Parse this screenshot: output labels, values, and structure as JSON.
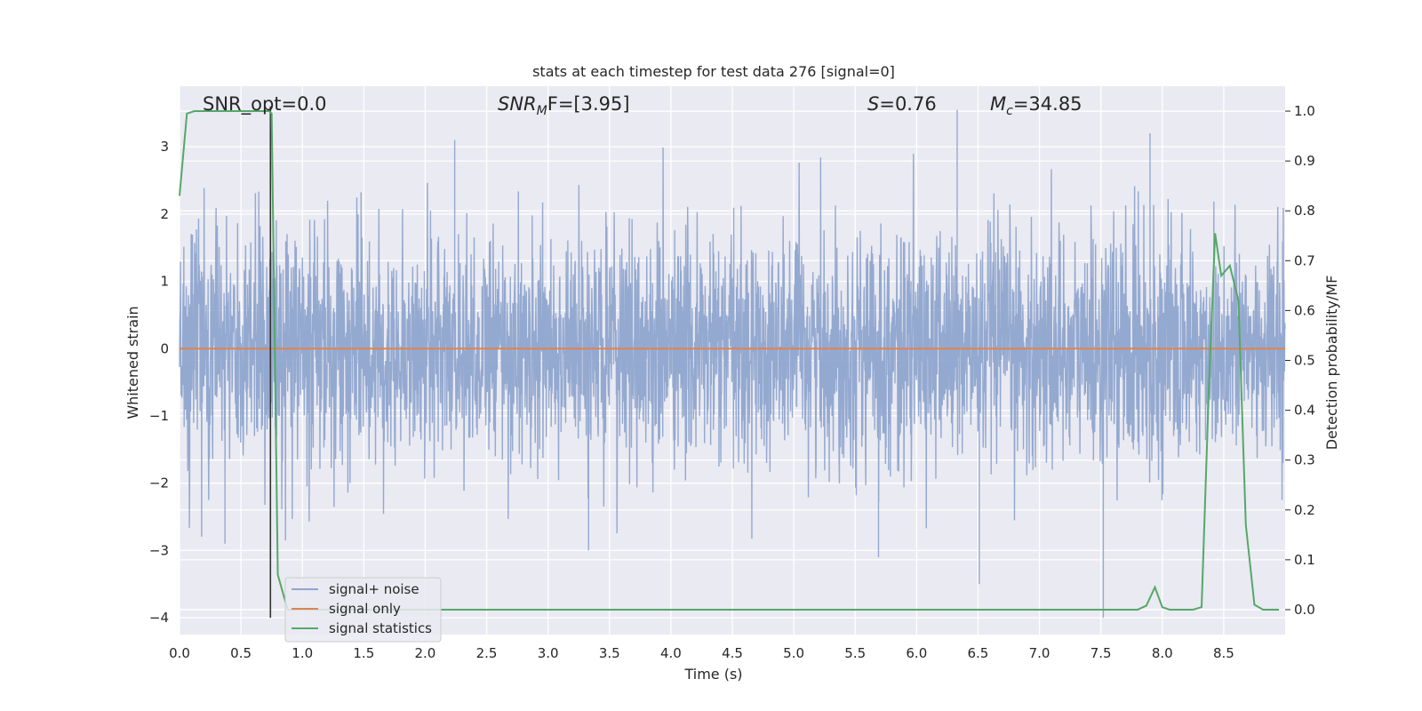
{
  "chart_data": {
    "type": "line",
    "title": "stats at each timestep for test data 276 [signal=0]",
    "xlabel": "Time (s)",
    "ylabel_left": "Whitened strain",
    "ylabel_right": "Detection probability/MF",
    "xlim": [
      0.0,
      9.0
    ],
    "ylim_left": [
      -4.25,
      3.9
    ],
    "ylim_right": [
      -0.05,
      1.05
    ],
    "xticks": [
      "0.0",
      "0.5",
      "1.0",
      "1.5",
      "2.0",
      "2.5",
      "3.0",
      "3.5",
      "4.0",
      "4.5",
      "5.0",
      "5.5",
      "6.0",
      "6.5",
      "7.0",
      "7.5",
      "8.0",
      "8.5"
    ],
    "yticks_left": [
      "3",
      "2",
      "1",
      "0",
      "−1",
      "−2",
      "−3",
      "−4"
    ],
    "yticks_right": [
      "1.0",
      "0.9",
      "0.8",
      "0.7",
      "0.6",
      "0.5",
      "0.4",
      "0.3",
      "0.2",
      "0.1",
      "0.0"
    ],
    "grid": true,
    "legend_position": "lower-left",
    "annotations": {
      "snr_opt": "SNR_opt=0.0",
      "snr_mf_base": "SNR",
      "snr_mf_sub": "M",
      "snr_mf_rest": "F=[3.95]",
      "s_base": "S",
      "s_rest": "=0.76",
      "mc_base": "M",
      "mc_sub": "c",
      "mc_rest": "=34.85"
    },
    "series": [
      {
        "name": "signal+ noise",
        "color": "#8fa5ce",
        "axis": "left",
        "description_points": "dense whitened noise, amplitude ~±1.7 typical, peaks up to 3.55 near t=6.33, troughs down to -4.0 near t=7.52"
      },
      {
        "name": "signal only",
        "color": "#dd8452",
        "axis": "left",
        "x": [
          0.0,
          9.0
        ],
        "values": [
          0.0,
          0.0
        ]
      },
      {
        "name": "signal statistics",
        "color": "#55a868",
        "axis": "right",
        "x": [
          0.0,
          0.06,
          0.12,
          0.2,
          0.3,
          0.4,
          0.5,
          0.6,
          0.7,
          0.73,
          0.75,
          0.8,
          0.88,
          0.95,
          1.5,
          2.0,
          3.0,
          4.0,
          5.0,
          6.0,
          7.0,
          7.5,
          7.8,
          7.87,
          7.94,
          8.0,
          8.06,
          8.15,
          8.25,
          8.32,
          8.38,
          8.43,
          8.48,
          8.55,
          8.62,
          8.68,
          8.75,
          8.82,
          8.95
        ],
        "values": [
          0.83,
          0.995,
          1.0,
          1.0,
          1.0,
          1.0,
          1.0,
          1.0,
          1.0,
          1.0,
          0.995,
          0.07,
          0.0,
          0.0,
          0.0,
          0.0,
          0.0,
          0.0,
          0.0,
          0.0,
          0.0,
          0.0,
          0.0,
          0.008,
          0.045,
          0.005,
          0.0,
          0.0,
          0.0,
          0.005,
          0.45,
          0.755,
          0.67,
          0.69,
          0.62,
          0.17,
          0.01,
          0.0,
          0.0
        ]
      }
    ],
    "vertical_line": {
      "x": 0.74,
      "color": "#333333"
    }
  }
}
